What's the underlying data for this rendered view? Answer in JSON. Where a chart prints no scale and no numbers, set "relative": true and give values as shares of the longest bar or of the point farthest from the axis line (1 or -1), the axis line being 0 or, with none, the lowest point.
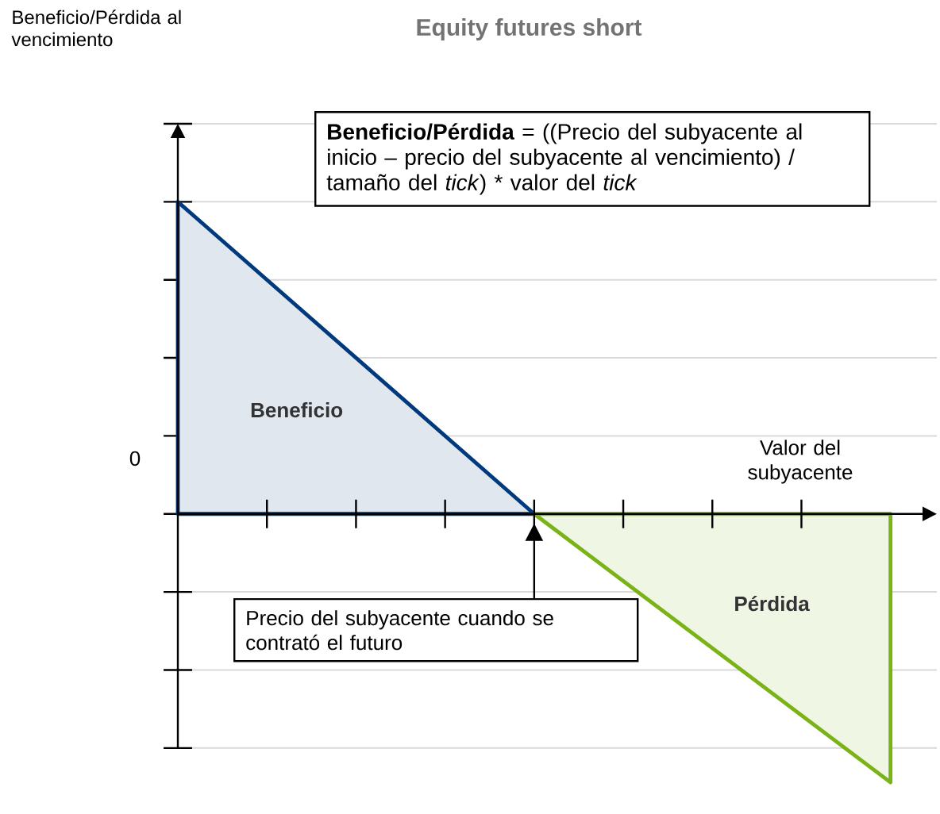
{
  "chart_data": {
    "type": "area",
    "title": "Equity futures short",
    "xlabel": "Valor del subyacente",
    "relative": true,
    "grid": "y",
    "categories": [
      null,
      null,
      null
    ],
    "series": [
      {
        "name": "Beneficio",
        "color": "#003a7d",
        "values": [
          1,
          0,
          null
        ]
      },
      {
        "name": "Pérdida",
        "color": "#7ab317",
        "values": [
          null,
          0,
          -0.86
        ]
      }
    ],
    "annotations": [
      "Beneficio/Pérdida al vencimiento",
      "**Beneficio/Pérdida** = ((Precio del subyacente al inicio – precio del subyacente al vencimiento) / tamaño del *tick*) * valor del *tick*",
      "Precio del subyacente cuando se contrató el futuro",
      "0"
    ]
  }
}
